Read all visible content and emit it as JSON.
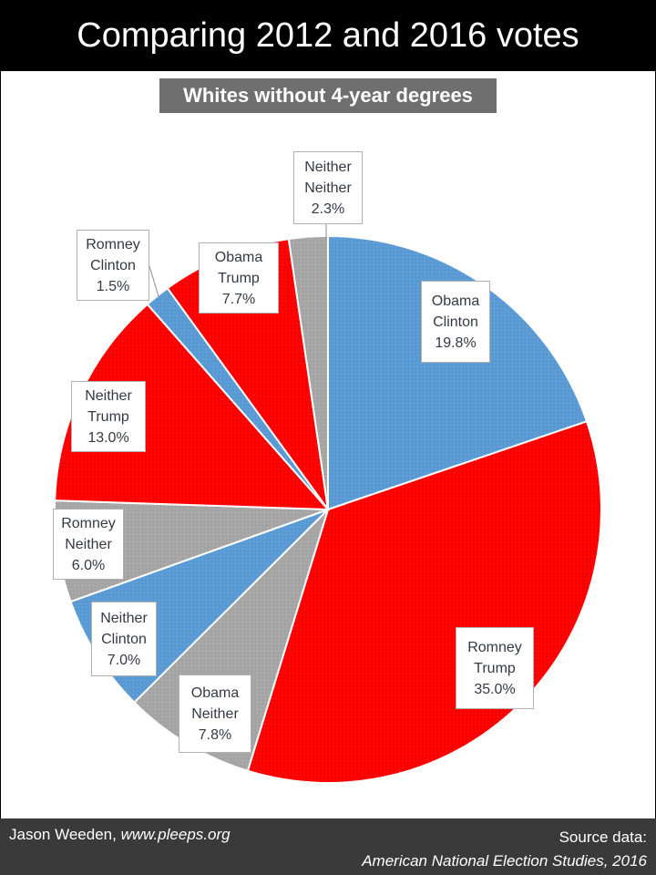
{
  "title": "Comparing 2012 and 2016 votes",
  "subtitle": "Whites without 4-year degrees",
  "footer": {
    "author": "Jason Weeden,",
    "site": "www.pleeps.org",
    "source_label": "Source data:",
    "source_name": "American National Election Studies, 2016"
  },
  "colors": {
    "clinton": "#5b9bd5",
    "trump": "#ff0000",
    "neither": "#a6a6a6"
  },
  "chart_data": {
    "type": "pie",
    "title": "Whites without 4-year degrees",
    "slices": [
      {
        "vote2012": "Obama",
        "vote2016": "Clinton",
        "value": 19.8,
        "label": "19.8%",
        "color": "#5b9bd5"
      },
      {
        "vote2012": "Romney",
        "vote2016": "Trump",
        "value": 35.0,
        "label": "35.0%",
        "color": "#ff0000"
      },
      {
        "vote2012": "Obama",
        "vote2016": "Neither",
        "value": 7.8,
        "label": "7.8%",
        "color": "#a6a6a6"
      },
      {
        "vote2012": "Neither",
        "vote2016": "Clinton",
        "value": 7.0,
        "label": "7.0%",
        "color": "#5b9bd5"
      },
      {
        "vote2012": "Romney",
        "vote2016": "Neither",
        "value": 6.0,
        "label": "6.0%",
        "color": "#a6a6a6"
      },
      {
        "vote2012": "Neither",
        "vote2016": "Trump",
        "value": 13.0,
        "label": "13.0%",
        "color": "#ff0000"
      },
      {
        "vote2012": "Romney",
        "vote2016": "Clinton",
        "value": 1.5,
        "label": "1.5%",
        "color": "#5b9bd5"
      },
      {
        "vote2012": "Obama",
        "vote2016": "Trump",
        "value": 7.7,
        "label": "7.7%",
        "color": "#ff0000"
      },
      {
        "vote2012": "Neither",
        "vote2016": "Neither",
        "value": 2.3,
        "label": "2.3%",
        "color": "#a6a6a6"
      }
    ]
  }
}
